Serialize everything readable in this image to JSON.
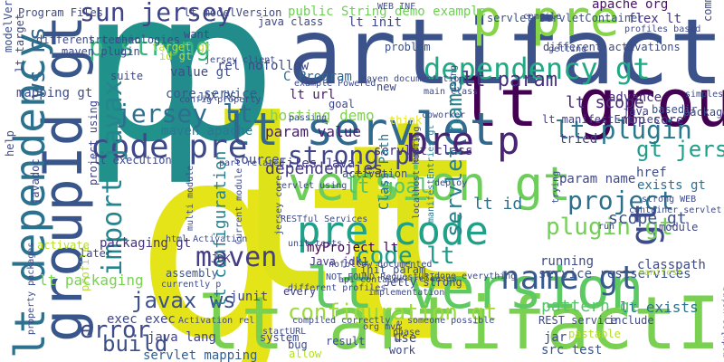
{
  "words": [
    {
      "text": "gt",
      "color": "#e5e419"
    },
    {
      "text": "lt",
      "color": "#dde318"
    },
    {
      "text": "p",
      "color": "#21918c"
    },
    {
      "text": "p",
      "color": "#228c8d"
    },
    {
      "text": "artifactId",
      "color": "#3b528b"
    },
    {
      "text": "lt artifactId",
      "color": "#7ad151"
    },
    {
      "text": "lt groupId",
      "color": "#440154"
    },
    {
      "text": "groupId gt",
      "color": "#39568c"
    },
    {
      "text": "lt version",
      "color": "#5ec962"
    },
    {
      "text": "lt dependency",
      "color": "#2c728e"
    },
    {
      "text": "gt",
      "color": "#3e4a89"
    },
    {
      "text": "version gt",
      "color": "#6ccd5a"
    },
    {
      "text": "p pre",
      "color": "#86d549"
    },
    {
      "text": "lt servlet",
      "color": "#31688e"
    },
    {
      "text": "code pre",
      "color": "#3e4989"
    },
    {
      "text": "pre code",
      "color": "#1fa187"
    },
    {
      "text": "dependency gt",
      "color": "#22a884"
    },
    {
      "text": "pre p",
      "color": "#482475"
    },
    {
      "text": "name gt",
      "color": "#38598c"
    },
    {
      "text": "gt jersey",
      "color": "#1f9e89"
    },
    {
      "text": "lt plugin",
      "color": "#2a788e"
    },
    {
      "text": "lt param",
      "color": "#46327e"
    },
    {
      "text": "project",
      "color": "#2d708e"
    },
    {
      "text": "plugin gt",
      "color": "#73d056"
    },
    {
      "text": "sun jersey",
      "color": "#414487"
    },
    {
      "text": "maven",
      "color": "#433e85"
    },
    {
      "text": "jersey lt",
      "color": "#2e6e8e"
    },
    {
      "text": "import javax",
      "color": "#25858e"
    },
    {
      "text": "javax ws",
      "color": "#3b518b"
    },
    {
      "text": "ws rs",
      "color": "#31678e"
    },
    {
      "text": "code lt",
      "color": "#1e9c89"
    },
    {
      "text": "lt configuration",
      "color": "#26818e"
    },
    {
      "text": "configuration gt",
      "color": "#9bd93c"
    },
    {
      "text": "p strong",
      "color": "#35b779"
    },
    {
      "text": "strong p",
      "color": "#404588"
    },
    {
      "text": "servlet name",
      "color": "#27808e"
    },
    {
      "text": "lt scope",
      "color": "#472c7a"
    },
    {
      "text": "lt id",
      "color": "#2d718e"
    },
    {
      "text": "lt url",
      "color": "#48186a"
    },
    {
      "text": "hosting demo",
      "color": "#7fd34e"
    },
    {
      "text": "param value",
      "color": "#481d6f"
    },
    {
      "text": "lt goal",
      "color": "#52c569"
    },
    {
      "text": "scope gt",
      "color": "#3b528b"
    },
    {
      "text": "servlet class",
      "color": "#46307e"
    },
    {
      "text": "dependencies",
      "color": "#453882"
    },
    {
      "text": "lt exists",
      "color": "#2c738e"
    },
    {
      "text": "pattern gt",
      "color": "#54c568"
    },
    {
      "text": "error",
      "color": "#3e4c8a"
    },
    {
      "text": "build",
      "color": "#3c4f8a"
    },
    {
      "text": "maven apache",
      "color": "#2a788e"
    },
    {
      "text": "core service",
      "color": "#375a8c"
    },
    {
      "text": "value gt",
      "color": "#3d4d8a"
    },
    {
      "text": "C Program",
      "color": "#30698e"
    },
    {
      "text": "JAX RS",
      "color": "#3b528b"
    },
    {
      "text": "rel nofollow",
      "color": "#3f4889"
    },
    {
      "text": "src main",
      "color": "#3a548c"
    },
    {
      "text": "lt modelVersion",
      "color": "#3e4a89"
    },
    {
      "text": "public String demo example",
      "color": "#70cf57"
    },
    {
      "text": "java class",
      "color": "#3f4788"
    },
    {
      "text": "lt init",
      "color": "#3f4788"
    },
    {
      "text": "apache org",
      "color": "#471164"
    },
    {
      "text": "flex lt",
      "color": "#46337f"
    },
    {
      "text": "advance",
      "color": "#472d7b"
    },
    {
      "text": "java",
      "color": "#424086"
    },
    {
      "text": "mop core",
      "color": "#46327e"
    },
    {
      "text": "basedir",
      "color": "#3b518b"
    },
    {
      "text": "package",
      "color": "#3e4a89"
    },
    {
      "text": "command line",
      "color": "#3e4c8a"
    },
    {
      "text": "lt manifestEntries",
      "color": "#424186"
    },
    {
      "text": "href",
      "color": "#3d4e8a"
    },
    {
      "text": "exists gt",
      "color": "#2f6c8e"
    },
    {
      "text": "param name",
      "color": "#3f4889"
    },
    {
      "text": "classpath",
      "color": "#3e4989"
    },
    {
      "text": "service restservices",
      "color": "#3a538b"
    },
    {
      "text": "source",
      "color": "#3e4a89"
    },
    {
      "text": "Class Path",
      "color": "#2c738e"
    },
    {
      "text": "activation",
      "color": "#3e4a89"
    },
    {
      "text": "Files Java",
      "color": "#424086"
    },
    {
      "text": "myProject lt",
      "color": "#440154"
    },
    {
      "text": "init param",
      "color": "#3d4e8a"
    },
    {
      "text": "junit",
      "color": "#3f4788"
    },
    {
      "text": "Java jdk1",
      "color": "#453581"
    },
    {
      "text": "JDK",
      "color": "#433e85"
    },
    {
      "text": "packaging gt",
      "color": "#46327e"
    },
    {
      "text": "lt packaging",
      "color": "#7ad151"
    },
    {
      "text": "exec exec",
      "color": "#3f4788"
    },
    {
      "text": "java lang",
      "color": "#414487"
    },
    {
      "text": "servlet mapping",
      "color": "#355f8d"
    },
    {
      "text": "lt execution",
      "color": "#3e4a89"
    },
    {
      "text": "assembly",
      "color": "#3a548c"
    },
    {
      "text": "mapping gt",
      "color": "#3e4c8a"
    },
    {
      "text": "target gt",
      "color": "#b5de2b"
    },
    {
      "text": "id gt",
      "color": "#b5de2b"
    },
    {
      "text": "Program Files",
      "color": "#3e4a89"
    },
    {
      "text": "system",
      "color": "#3e4a89"
    },
    {
      "text": "use",
      "color": "#3f4788"
    },
    {
      "text": "jar",
      "color": "#3e4c8a"
    },
    {
      "text": "src test",
      "color": "#3b528b"
    },
    {
      "text": "lt target",
      "color": "#3f4788"
    },
    {
      "text": "modelVersion gt",
      "color": "#3d4e8a"
    },
    {
      "text": "javadoc",
      "color": "#3f4788"
    },
    {
      "text": "profile",
      "color": "#b5de2b"
    },
    {
      "text": "project using",
      "color": "#414487"
    },
    {
      "text": "module",
      "color": "#3f4788"
    },
    {
      "text": "running",
      "color": "#3e4a89"
    },
    {
      "text": "manifestEntries gt",
      "color": "#2a788e"
    },
    {
      "text": "servlet ServletContainer",
      "color": "#3b518b"
    },
    {
      "text": "tried",
      "color": "#433e85"
    },
    {
      "text": "want",
      "color": "#3f4788"
    },
    {
      "text": "different technologies",
      "color": "#3e4a89"
    },
    {
      "text": "maven plugin",
      "color": "#3e4a89"
    },
    {
      "text": "problem",
      "color": "#3b528b"
    },
    {
      "text": "think",
      "color": "#e5e419"
    },
    {
      "text": "allow",
      "color": "#b5de2b"
    },
    {
      "text": "every",
      "color": "#433e85"
    },
    {
      "text": "result",
      "color": "#3e4a89"
    },
    {
      "text": "bug",
      "color": "#3e4a89"
    },
    {
      "text": "activate",
      "color": "#b5de2b"
    },
    {
      "text": "later",
      "color": "#3f4788"
    },
    {
      "text": "goal",
      "color": "#3f4788"
    },
    {
      "text": "new",
      "color": "#3f4788"
    },
    {
      "text": "run",
      "color": "#3f4788"
    },
    {
      "text": "include",
      "color": "#3e4a89"
    },
    {
      "text": "help",
      "color": "#3e4a89"
    },
    {
      "text": "compile",
      "color": "#3f4788"
    },
    {
      "text": "suite",
      "color": "#3e4a89"
    },
    {
      "text": "file",
      "color": "#3e4a89"
    },
    {
      "text": "Jetty strong",
      "color": "#3e4a89"
    },
    {
      "text": "work",
      "color": "#3e4a89"
    },
    {
      "text": "startURL",
      "color": "#3e4a89"
    },
    {
      "text": "phase",
      "color": "#3e4a89"
    },
    {
      "text": "deploy",
      "color": "#3e4a89"
    },
    {
      "text": "multi module",
      "color": "#3e4a89"
    },
    {
      "text": "RESTful Services",
      "color": "#3e4a89"
    },
    {
      "text": "unit tests",
      "color": "#3e4a89"
    },
    {
      "text": "different activations",
      "color": "#3e4a89"
    },
    {
      "text": "Maven documentation",
      "color": "#3e4a89"
    },
    {
      "text": "profiles based",
      "color": "#3e4a89"
    },
    {
      "text": "simplest REST",
      "color": "#3e4a89"
    },
    {
      "text": "container servlet",
      "color": "#3e4a89"
    },
    {
      "text": "example Powered",
      "color": "#3e4a89"
    },
    {
      "text": "config property",
      "color": "#3e4a89"
    },
    {
      "text": "pastable",
      "color": "#b5de2b"
    },
    {
      "text": "someone possible",
      "color": "#3e4a89"
    },
    {
      "text": "done everything",
      "color": "#3e4a89"
    },
    {
      "text": "localhost hosting",
      "color": "#3e4a89"
    },
    {
      "text": "trying",
      "color": "#3e4a89"
    },
    {
      "text": "modules using",
      "color": "#3e4a89"
    },
    {
      "text": "using",
      "color": "#3e4a89"
    },
    {
      "text": "entry",
      "color": "#3e4a89"
    },
    {
      "text": "part related",
      "color": "#3e4a89"
    },
    {
      "text": "html Activation",
      "color": "#3e4a89"
    },
    {
      "text": "NOT_FOUND RequestURI",
      "color": "#3e4a89"
    },
    {
      "text": "Activation rel",
      "color": "#3e4a89"
    },
    {
      "text": "implementation",
      "color": "#3e4a89"
    },
    {
      "text": "coworker",
      "color": "#3e4a89"
    },
    {
      "text": "getting",
      "color": "#3e4a89"
    },
    {
      "text": "manifest",
      "color": "#b5de2b"
    },
    {
      "text": "strong WEB",
      "color": "#3e4a89"
    },
    {
      "text": "passing",
      "color": "#3e4a89"
    },
    {
      "text": "currently p",
      "color": "#3e4a89"
    },
    {
      "text": "different profiles",
      "color": "#3e4a89"
    },
    {
      "text": "nofollow documented",
      "color": "#3e4a89"
    },
    {
      "text": "compiled correctly",
      "color": "#3e4a89"
    },
    {
      "text": "org mvn",
      "color": "#3e4a89"
    },
    {
      "text": "property packages",
      "color": "#3e4a89"
    },
    {
      "text": "REST service",
      "color": "#3e4a89"
    },
    {
      "text": "WEB INF",
      "color": "#3e4a89"
    },
    {
      "text": "main class",
      "color": "#3e4a89"
    },
    {
      "text": "jersey client",
      "color": "#3e4a89"
    },
    {
      "text": "jersey core",
      "color": "#3e4a89"
    },
    {
      "text": "Current module",
      "color": "#3e4a89"
    },
    {
      "text": "api container",
      "color": "#3e4a89"
    },
    {
      "text": "servlet using",
      "color": "#3e4a89"
    },
    {
      "text": "releases",
      "color": "#3e4a89"
    },
    {
      "text": "separate",
      "color": "#3e4a89"
    },
    {
      "text": "dependency scope",
      "color": "#3e4a89"
    },
    {
      "text": "different versions",
      "color": "#3e4a89"
    }
  ]
}
